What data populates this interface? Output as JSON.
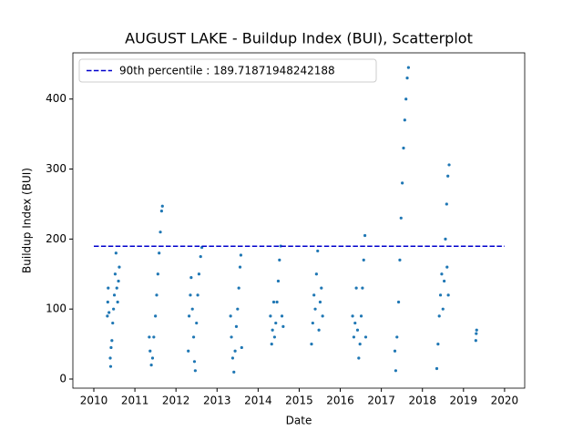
{
  "chart_data": {
    "type": "scatter",
    "title": "AUGUST LAKE - Buildup Index (BUI), Scatterplot",
    "x_label": "Date",
    "y_label": "Buildup Index (BUI)",
    "xlim": [
      2009.49,
      2020.49
    ],
    "ylim": [
      -13,
      466
    ],
    "xticks": [
      2010,
      2011,
      2012,
      2013,
      2014,
      2015,
      2016,
      2017,
      2018,
      2019,
      2020
    ],
    "yticks": [
      0,
      100,
      200,
      300,
      400
    ],
    "legend": "upper left",
    "reference_line": {
      "name": "90th percentile : 189.71871948242188",
      "value": 189.71871948242188,
      "x": [
        2010,
        2020
      ],
      "color": "#0000cc",
      "style": "dashed"
    },
    "series": [
      {
        "color": "#1f77b4",
        "x": [
          2010.33,
          2010.34,
          2010.35,
          2010.37,
          2010.4,
          2010.41,
          2010.42,
          2010.44,
          2010.46,
          2010.48,
          2010.5,
          2010.52,
          2010.54,
          2010.56,
          2010.58,
          2010.6,
          2010.62,
          2011.35,
          2011.37,
          2011.4,
          2011.43,
          2011.46,
          2011.5,
          2011.53,
          2011.56,
          2011.59,
          2011.62,
          2011.65,
          2011.67,
          2012.3,
          2012.32,
          2012.35,
          2012.37,
          2012.4,
          2012.43,
          2012.45,
          2012.47,
          2012.5,
          2012.53,
          2012.56,
          2012.6,
          2012.63,
          2013.33,
          2013.35,
          2013.38,
          2013.41,
          2013.44,
          2013.47,
          2013.5,
          2013.53,
          2013.56,
          2013.58,
          2013.6,
          2014.3,
          2014.33,
          2014.35,
          2014.38,
          2014.4,
          2014.43,
          2014.46,
          2014.49,
          2014.52,
          2014.55,
          2014.58,
          2014.61,
          2015.3,
          2015.33,
          2015.36,
          2015.39,
          2015.42,
          2015.45,
          2015.48,
          2015.51,
          2015.54,
          2015.57,
          2016.3,
          2016.33,
          2016.36,
          2016.39,
          2016.42,
          2016.45,
          2016.48,
          2016.51,
          2016.54,
          2016.57,
          2016.6,
          2016.62,
          2017.33,
          2017.35,
          2017.38,
          2017.42,
          2017.45,
          2017.48,
          2017.51,
          2017.54,
          2017.57,
          2017.6,
          2017.63,
          2017.66,
          2018.35,
          2018.38,
          2018.41,
          2018.44,
          2018.47,
          2018.5,
          2018.53,
          2018.56,
          2018.59,
          2018.62,
          2018.65,
          2018.63,
          2018.6,
          2019.3,
          2019.31,
          2019.32
        ],
        "values": [
          90,
          110,
          130,
          95,
          30,
          18,
          45,
          55,
          80,
          100,
          120,
          150,
          180,
          130,
          110,
          140,
          160,
          60,
          40,
          20,
          30,
          60,
          90,
          120,
          150,
          180,
          210,
          240,
          247,
          40,
          90,
          120,
          145,
          100,
          60,
          25,
          12,
          80,
          120,
          150,
          175,
          188,
          90,
          60,
          30,
          10,
          40,
          75,
          100,
          130,
          160,
          177,
          45,
          90,
          50,
          70,
          110,
          60,
          80,
          110,
          140,
          170,
          190,
          90,
          75,
          50,
          80,
          120,
          100,
          150,
          183,
          70,
          110,
          130,
          90,
          90,
          60,
          80,
          130,
          70,
          30,
          50,
          90,
          130,
          170,
          205,
          60,
          40,
          12,
          60,
          110,
          170,
          230,
          280,
          330,
          370,
          400,
          430,
          445,
          15,
          50,
          90,
          120,
          150,
          100,
          140,
          200,
          250,
          290,
          306,
          120,
          160,
          55,
          65,
          70
        ]
      }
    ]
  }
}
